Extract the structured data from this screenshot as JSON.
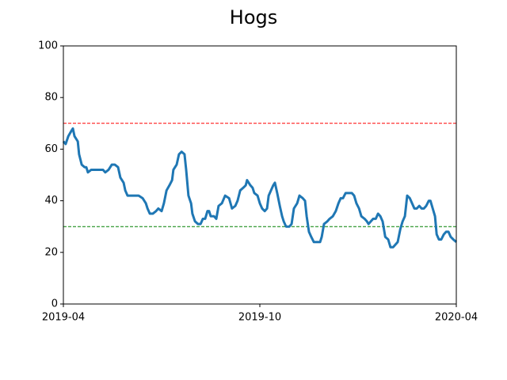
{
  "chart_data": {
    "type": "line",
    "title": "Hogs",
    "x": [
      0,
      0.07,
      0.15,
      0.24,
      0.29,
      0.34,
      0.44,
      0.48,
      0.56,
      0.65,
      0.7,
      0.75,
      0.85,
      0.97,
      1.09,
      1.21,
      1.28,
      1.38,
      1.48,
      1.57,
      1.67,
      1.74,
      1.84,
      1.89,
      1.96,
      2.08,
      2.18,
      2.3,
      2.42,
      2.52,
      2.57,
      2.64,
      2.73,
      2.83,
      2.9,
      3.0,
      3.07,
      3.15,
      3.24,
      3.32,
      3.36,
      3.46,
      3.53,
      3.61,
      3.7,
      3.75,
      3.82,
      3.9,
      3.94,
      4.02,
      4.11,
      4.19,
      4.26,
      4.33,
      4.4,
      4.45,
      4.5,
      4.6,
      4.67,
      4.74,
      4.84,
      4.94,
      5.06,
      5.15,
      5.25,
      5.32,
      5.4,
      5.49,
      5.57,
      5.61,
      5.71,
      5.78,
      5.83,
      5.93,
      6.0,
      6.07,
      6.15,
      6.22,
      6.27,
      6.34,
      6.41,
      6.46,
      6.53,
      6.61,
      6.68,
      6.73,
      6.8,
      6.9,
      6.97,
      7.04,
      7.14,
      7.21,
      7.31,
      7.38,
      7.43,
      7.5,
      7.57,
      7.65,
      7.74,
      7.84,
      7.89,
      7.96,
      8.06,
      8.13,
      8.23,
      8.32,
      8.4,
      8.47,
      8.54,
      8.62,
      8.71,
      8.81,
      8.88,
      8.95,
      9.03,
      9.1,
      9.2,
      9.27,
      9.32,
      9.39,
      9.46,
      9.54,
      9.61,
      9.68,
      9.75,
      9.83,
      9.92,
      9.99,
      10.07,
      10.14,
      10.21,
      10.29,
      10.36,
      10.43,
      10.5,
      10.58,
      10.65,
      10.72,
      10.79,
      10.87,
      10.94,
      11.01,
      11.08,
      11.16,
      11.21,
      11.28,
      11.35,
      11.4,
      11.47,
      11.54,
      11.62,
      11.69,
      11.76,
      11.83,
      11.91,
      12
    ],
    "series": [
      {
        "color": "#1f77b4",
        "values": [
          63,
          62,
          65,
          67,
          68,
          65,
          63,
          58,
          54,
          53,
          53,
          51,
          52,
          52,
          52,
          52,
          51,
          52,
          54,
          54,
          53,
          49,
          47,
          44,
          42,
          42,
          42,
          42,
          41,
          39,
          37,
          35,
          35,
          36,
          37,
          36,
          39,
          44,
          46,
          48,
          52,
          54,
          58,
          59,
          58,
          52,
          42,
          39,
          35,
          32,
          31,
          31,
          33,
          33,
          36,
          36,
          34,
          34,
          33,
          38,
          39,
          42,
          41,
          37,
          38,
          40,
          44,
          45,
          46,
          48,
          46,
          45,
          43,
          42,
          39,
          37,
          36,
          37,
          42,
          44,
          46,
          47,
          43,
          38,
          34,
          32,
          30,
          30,
          31,
          37,
          39,
          42,
          41,
          40,
          34,
          28,
          26,
          24,
          24,
          24,
          26,
          31,
          32,
          33,
          34,
          36,
          39,
          41,
          41,
          43,
          43,
          43,
          42,
          39,
          37,
          34,
          33,
          32,
          31,
          32,
          33,
          33,
          35,
          34,
          32,
          26,
          25,
          22,
          22,
          23,
          24,
          29,
          32,
          34,
          42,
          41,
          39,
          37,
          37,
          38,
          37,
          37,
          38,
          40,
          40,
          37,
          34,
          27,
          25,
          25,
          27,
          28,
          28,
          26,
          25,
          24
        ]
      }
    ],
    "hlines": [
      {
        "value": 70,
        "color": "#ff0000"
      },
      {
        "value": 30,
        "color": "#008000"
      }
    ],
    "xlim": [
      0,
      12
    ],
    "xticks": [
      {
        "value": 0,
        "label": "2019-04"
      },
      {
        "value": 6,
        "label": "2019-10"
      },
      {
        "value": 12,
        "label": "2020-04"
      }
    ],
    "ylim": [
      0,
      100
    ],
    "yticks": [
      0,
      20,
      40,
      60,
      80,
      100
    ]
  }
}
